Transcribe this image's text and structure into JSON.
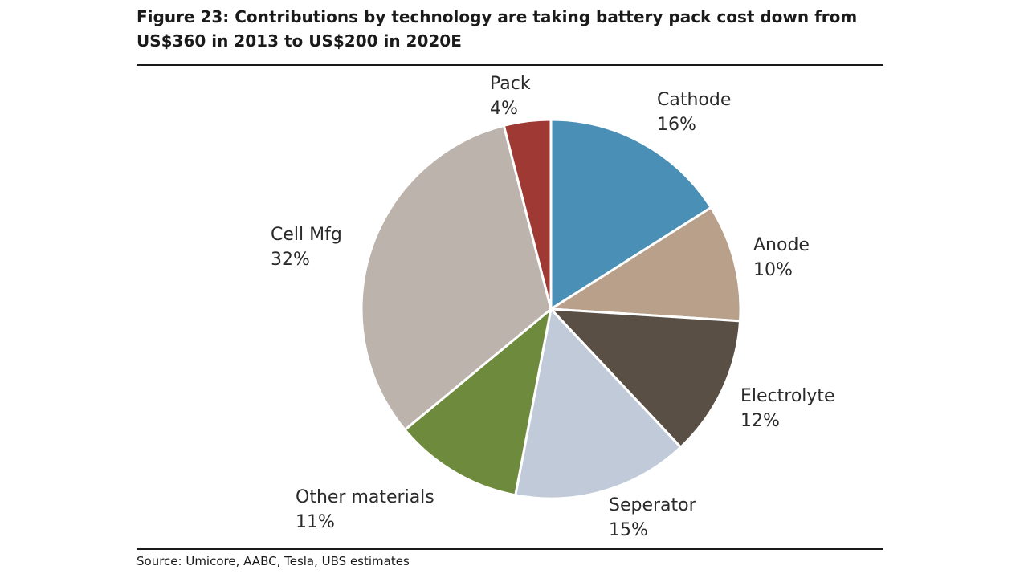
{
  "figure": {
    "title_line1": "Figure 23: Contributions by technology are taking battery pack cost down from",
    "title_line2": "US$360 in 2013 to US$200 in 2020E",
    "source": "Source: Umicore, AABC, Tesla, UBS estimates"
  },
  "chart_data": {
    "type": "pie",
    "title": "Figure 23: Contributions by technology are taking battery pack cost down from US$360 in 2013 to US$200 in 2020E",
    "start_angle_deg": 0,
    "direction": "clockwise",
    "slices": [
      {
        "label": "Cathode",
        "value": 16,
        "value_label": "16%",
        "color": "#4a8fb5"
      },
      {
        "label": "Anode",
        "value": 10,
        "value_label": "10%",
        "color": "#b8a08a"
      },
      {
        "label": "Electrolyte",
        "value": 12,
        "value_label": "12%",
        "color": "#5a4f45"
      },
      {
        "label": "Seperator",
        "value": 15,
        "value_label": "15%",
        "color": "#c0cad8"
      },
      {
        "label": "Other materials",
        "value": 11,
        "value_label": "11%",
        "color": "#6e8a3c"
      },
      {
        "label": "Cell Mfg",
        "value": 32,
        "value_label": "32%",
        "color": "#bcb3ac"
      },
      {
        "label": "Pack",
        "value": 4,
        "value_label": "4%",
        "color": "#9e3a33"
      }
    ]
  }
}
